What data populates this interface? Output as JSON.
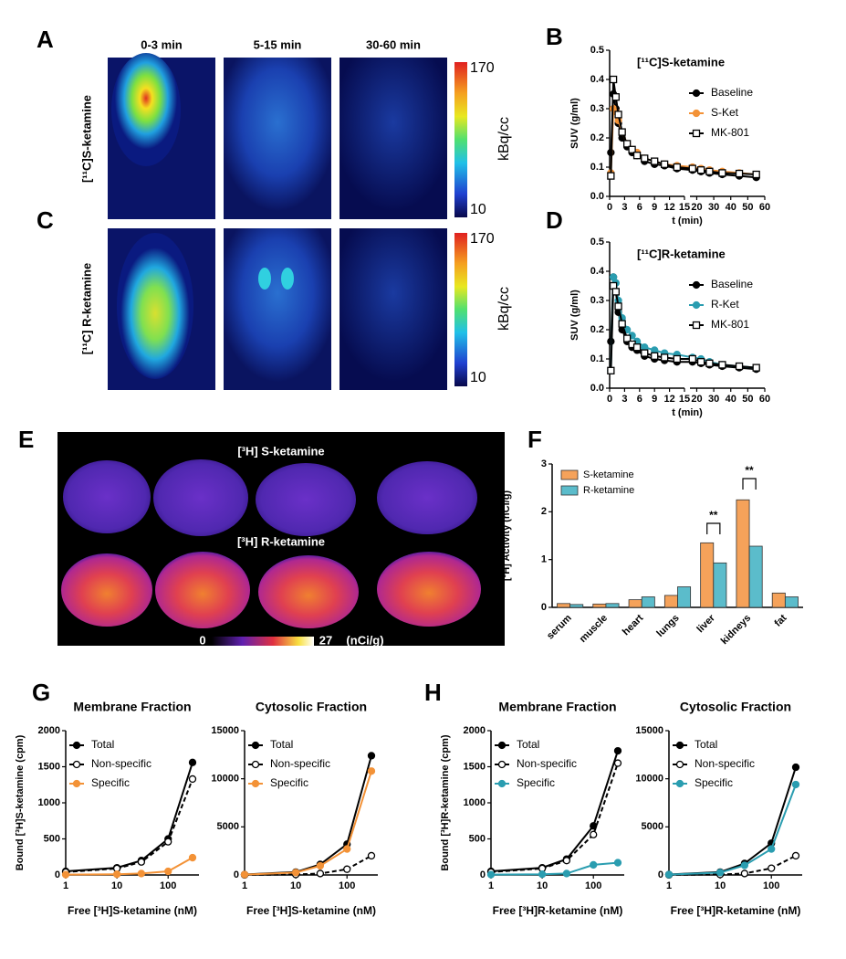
{
  "panel_labels": [
    "A",
    "B",
    "C",
    "D",
    "E",
    "F",
    "G",
    "H"
  ],
  "images": {
    "columns": [
      "0-3 min",
      "5-15 min",
      "30-60 min"
    ],
    "rows": [
      "[¹¹C]S-ketamine",
      "[¹¹C] R-ketamine"
    ],
    "colorbar": {
      "max": 170,
      "min": 10,
      "unit": "kBq/cc"
    },
    "autoradiography": {
      "rows": [
        "[³H] S-ketamine",
        "[³H] R-ketamine"
      ],
      "colorbar": {
        "min": 0,
        "max": 27,
        "unit": "(nCi/g)"
      }
    }
  },
  "chart_data": [
    {
      "type": "line",
      "title": "[¹¹C]S-ketamine",
      "xlabel": "t (min)",
      "ylabel": "SUV (g/ml)",
      "x": [
        0.25,
        0.75,
        1.25,
        1.75,
        2.5,
        3.5,
        4.5,
        5.5,
        7,
        9,
        11,
        13.5,
        17.5,
        22.5,
        27.5,
        35,
        45,
        55
      ],
      "xlim": [
        0,
        60
      ],
      "xbreak": [
        15,
        16
      ],
      "xticks": [
        0,
        3,
        6,
        9,
        12,
        15,
        20,
        30,
        40,
        50,
        60
      ],
      "ylim": [
        0,
        0.5
      ],
      "yticks": [
        {
          "value": 0,
          "label": "0.0"
        },
        0.1,
        0.2,
        0.3,
        0.4,
        0.5
      ],
      "legend": "upper right",
      "series": [
        {
          "name": "Baseline",
          "color": "#000000",
          "marker": "circle",
          "filled": true,
          "values": [
            0.15,
            0.35,
            0.3,
            0.25,
            0.2,
            0.17,
            0.15,
            0.14,
            0.12,
            0.11,
            0.105,
            0.095,
            0.09,
            0.085,
            0.08,
            0.075,
            0.07,
            0.065
          ]
        },
        {
          "name": "S-Ket",
          "color": "#f39237",
          "marker": "circle",
          "filled": true,
          "values": [
            0.08,
            0.3,
            0.29,
            0.26,
            0.22,
            0.18,
            0.16,
            0.15,
            0.13,
            0.12,
            0.11,
            0.105,
            0.1,
            0.095,
            0.09,
            0.085,
            0.08,
            0.075
          ]
        },
        {
          "name": "MK-801",
          "color": "#000000",
          "marker": "square",
          "filled": false,
          "values": [
            0.07,
            0.4,
            0.34,
            0.28,
            0.22,
            0.18,
            0.16,
            0.14,
            0.13,
            0.12,
            0.11,
            0.1,
            0.095,
            0.09,
            0.085,
            0.08,
            0.078,
            0.075
          ]
        }
      ]
    },
    {
      "type": "line",
      "title": "[¹¹C]R-ketamine",
      "xlabel": "t (min)",
      "ylabel": "SUV (g/ml)",
      "x": [
        0.25,
        0.75,
        1.25,
        1.75,
        2.5,
        3.5,
        4.5,
        5.5,
        7,
        9,
        11,
        13.5,
        17.5,
        22.5,
        27.5,
        35,
        45,
        55
      ],
      "xlim": [
        0,
        60
      ],
      "xbreak": [
        15,
        16
      ],
      "xticks": [
        0,
        3,
        6,
        9,
        12,
        15,
        20,
        30,
        40,
        50,
        60
      ],
      "ylim": [
        0,
        0.5
      ],
      "yticks": [
        {
          "value": 0,
          "label": "0.0"
        },
        0.1,
        0.2,
        0.3,
        0.4,
        0.5
      ],
      "legend": "upper right",
      "series": [
        {
          "name": "Baseline",
          "color": "#000000",
          "marker": "circle",
          "filled": true,
          "values": [
            0.16,
            0.38,
            0.33,
            0.26,
            0.2,
            0.16,
            0.14,
            0.13,
            0.11,
            0.1,
            0.095,
            0.09,
            0.09,
            0.085,
            0.08,
            0.075,
            0.07,
            0.065
          ]
        },
        {
          "name": "R-Ket",
          "color": "#2a9db0",
          "marker": "circle",
          "filled": true,
          "values": [
            0.06,
            0.38,
            0.36,
            0.3,
            0.24,
            0.2,
            0.18,
            0.16,
            0.14,
            0.13,
            0.12,
            0.115,
            0.105,
            0.1,
            0.09,
            0.08,
            0.075,
            0.07
          ]
        },
        {
          "name": "MK-801",
          "color": "#000000",
          "marker": "square",
          "filled": false,
          "values": [
            0.06,
            0.35,
            0.33,
            0.28,
            0.22,
            0.17,
            0.15,
            0.14,
            0.12,
            0.11,
            0.105,
            0.1,
            0.1,
            0.09,
            0.085,
            0.08,
            0.075,
            0.07
          ]
        }
      ]
    },
    {
      "type": "bar",
      "ylabel": "[³H] Activity (nCi/g)",
      "categories": [
        "serum",
        "muscle",
        "heart",
        "lungs",
        "liver",
        "kidneys",
        "fat"
      ],
      "ylim": [
        0,
        3
      ],
      "yticks": [
        0,
        1,
        2,
        3
      ],
      "legend": "upper left",
      "annotations": [
        "**",
        "**"
      ],
      "series": [
        {
          "name": "S-ketamine",
          "color": "#f5a25a",
          "values": [
            0.08,
            0.07,
            0.16,
            0.25,
            1.35,
            2.25,
            0.3
          ]
        },
        {
          "name": "R-ketamine",
          "color": "#5bbccb",
          "values": [
            0.06,
            0.08,
            0.22,
            0.43,
            0.93,
            1.28,
            0.22
          ]
        }
      ]
    },
    {
      "type": "line",
      "title": "Membrane Fraction",
      "xlabel": "Free [³H]S-ketamine (nM)",
      "ylabel": "Bound [³H]S-ketamine (cpm)",
      "xscale": "log",
      "x": [
        1,
        10,
        30,
        100,
        300
      ],
      "xlim": [
        1,
        400
      ],
      "xticks": [
        1,
        10,
        100
      ],
      "ylim": [
        0,
        2000
      ],
      "yticks": [
        0,
        500,
        1000,
        1500,
        2000
      ],
      "legend": "upper left",
      "series": [
        {
          "name": "Total",
          "color": "#000000",
          "marker": "circle",
          "filled": true,
          "values": [
            50,
            100,
            200,
            500,
            1560
          ]
        },
        {
          "name": "Non-specific",
          "color": "#000000",
          "marker": "circle",
          "filled": false,
          "dashed": true,
          "values": [
            40,
            90,
            180,
            460,
            1330
          ]
        },
        {
          "name": "Specific",
          "color": "#f39237",
          "marker": "circle",
          "filled": true,
          "values": [
            5,
            10,
            20,
            50,
            240
          ]
        }
      ]
    },
    {
      "type": "line",
      "title": "Cytosolic Fraction",
      "xlabel": "Free [³H]S-ketamine (nM)",
      "xscale": "log",
      "x": [
        1,
        10,
        30,
        100,
        300
      ],
      "xlim": [
        1,
        400
      ],
      "xticks": [
        1,
        10,
        100
      ],
      "ylim": [
        0,
        15000
      ],
      "yticks": [
        0,
        5000,
        10000,
        15000
      ],
      "legend": "upper left",
      "series": [
        {
          "name": "Total",
          "color": "#000000",
          "marker": "circle",
          "filled": true,
          "values": [
            50,
            300,
            1100,
            3200,
            12400
          ]
        },
        {
          "name": "Non-specific",
          "color": "#000000",
          "marker": "circle",
          "filled": false,
          "dashed": true,
          "values": [
            5,
            50,
            150,
            600,
            2000
          ]
        },
        {
          "name": "Specific",
          "color": "#f39237",
          "marker": "circle",
          "filled": true,
          "values": [
            40,
            250,
            950,
            2700,
            10800
          ]
        }
      ]
    },
    {
      "type": "line",
      "title": "Membrane Fraction",
      "xlabel": "Free [³H]R-ketamine (nM)",
      "ylabel": "Bound [³H]R-ketamine (cpm)",
      "xscale": "log",
      "x": [
        1,
        10,
        30,
        100,
        300
      ],
      "xlim": [
        1,
        400
      ],
      "xticks": [
        1,
        10,
        100
      ],
      "ylim": [
        0,
        2000
      ],
      "yticks": [
        0,
        500,
        1000,
        1500,
        2000
      ],
      "legend": "upper left",
      "series": [
        {
          "name": "Total",
          "color": "#000000",
          "marker": "circle",
          "filled": true,
          "values": [
            50,
            100,
            220,
            680,
            1720
          ]
        },
        {
          "name": "Non-specific",
          "color": "#000000",
          "marker": "circle",
          "filled": false,
          "dashed": true,
          "values": [
            40,
            90,
            200,
            560,
            1550
          ]
        },
        {
          "name": "Specific",
          "color": "#2a9db0",
          "marker": "circle",
          "filled": true,
          "values": [
            5,
            10,
            20,
            140,
            170
          ]
        }
      ]
    },
    {
      "type": "line",
      "title": "Cytosolic Fraction",
      "xlabel": "Free [³H]R-ketamine (nM)",
      "xscale": "log",
      "x": [
        1,
        10,
        30,
        100,
        300
      ],
      "xlim": [
        1,
        400
      ],
      "xticks": [
        1,
        10,
        100
      ],
      "ylim": [
        0,
        15000
      ],
      "yticks": [
        0,
        5000,
        10000,
        15000
      ],
      "legend": "upper left",
      "series": [
        {
          "name": "Total",
          "color": "#000000",
          "marker": "circle",
          "filled": true,
          "values": [
            50,
            300,
            1200,
            3300,
            11200
          ]
        },
        {
          "name": "Non-specific",
          "color": "#000000",
          "marker": "circle",
          "filled": false,
          "dashed": true,
          "values": [
            10,
            50,
            150,
            700,
            2000
          ]
        },
        {
          "name": "Specific",
          "color": "#2a9db0",
          "marker": "circle",
          "filled": true,
          "values": [
            40,
            250,
            1000,
            2700,
            9400
          ]
        }
      ]
    }
  ]
}
